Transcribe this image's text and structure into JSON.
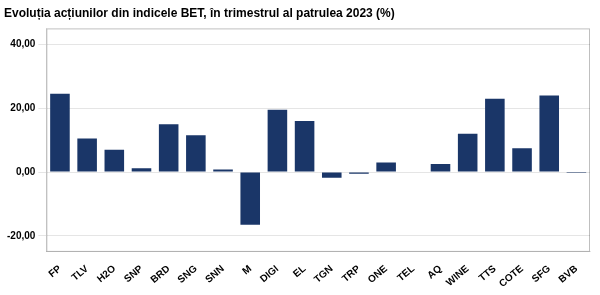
{
  "chart_data": {
    "type": "bar",
    "title": "Evoluția acțiunilor din indicele BET, în trimestrul al patrulea 2023 (%)",
    "categories": [
      "FP",
      "TLV",
      "H2O",
      "SNP",
      "BRD",
      "SNG",
      "SNN",
      "M",
      "DIGI",
      "EL",
      "TGN",
      "TRP",
      "ONE",
      "TEL",
      "AQ",
      "WINE",
      "TTS",
      "COTE",
      "SFG",
      "BVB"
    ],
    "values": [
      24.5,
      10.5,
      7.0,
      1.2,
      15.0,
      11.5,
      0.8,
      -16.5,
      19.5,
      16.0,
      -1.8,
      -0.5,
      3.0,
      0.0,
      2.5,
      12.0,
      23.0,
      7.5,
      24.0,
      -0.3
    ],
    "color": "#1a3668",
    "ylim": [
      -25,
      45
    ],
    "yticks": [
      {
        "value": -20.0,
        "label": "-20,00"
      },
      {
        "value": 0.0,
        "label": "0,00"
      },
      {
        "value": 20.0,
        "label": "20,00"
      },
      {
        "value": 40.0,
        "label": "40,00"
      }
    ],
    "grid": true
  }
}
